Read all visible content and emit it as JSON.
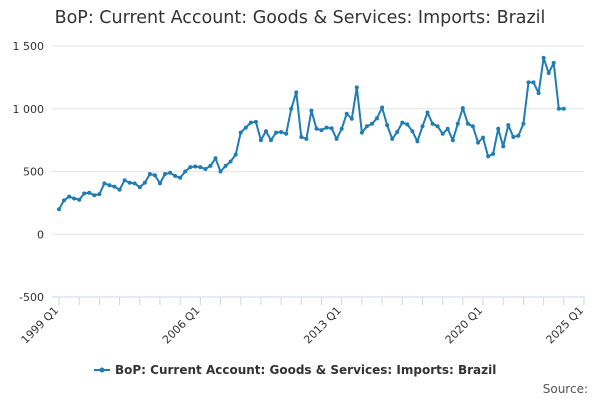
{
  "chart_data": {
    "type": "line",
    "title": "BoP: Current Account: Goods & Services: Imports: Brazil",
    "xlabel": "",
    "ylabel": "",
    "ylim": [
      -500,
      1500
    ],
    "y_ticks": [
      "1 500",
      "1 000",
      "500",
      "0",
      "-500"
    ],
    "x_ticks": [
      "1999 Q1",
      "2006 Q1",
      "2013 Q1",
      "2020 Q1",
      "2025 Q1"
    ],
    "grid": true,
    "legend_position": "bottom",
    "series": [
      {
        "name": "BoP: Current Account: Goods & Services: Imports: Brazil",
        "color": "#1f7cb4",
        "x": [
          "1999 Q1",
          "1999 Q2",
          "1999 Q3",
          "1999 Q4",
          "2000 Q1",
          "2000 Q2",
          "2000 Q3",
          "2000 Q4",
          "2001 Q1",
          "2001 Q2",
          "2001 Q3",
          "2001 Q4",
          "2002 Q1",
          "2002 Q2",
          "2002 Q3",
          "2002 Q4",
          "2003 Q1",
          "2003 Q2",
          "2003 Q3",
          "2003 Q4",
          "2004 Q1",
          "2004 Q2",
          "2004 Q3",
          "2004 Q4",
          "2005 Q1",
          "2005 Q2",
          "2005 Q3",
          "2005 Q4",
          "2006 Q1",
          "2006 Q2",
          "2006 Q3",
          "2006 Q4",
          "2007 Q1",
          "2007 Q2",
          "2007 Q3",
          "2007 Q4",
          "2008 Q1",
          "2008 Q2",
          "2008 Q3",
          "2008 Q4",
          "2009 Q1",
          "2009 Q2",
          "2009 Q3",
          "2009 Q4",
          "2010 Q1",
          "2010 Q2",
          "2010 Q3",
          "2010 Q4",
          "2011 Q1",
          "2011 Q2",
          "2011 Q3",
          "2011 Q4",
          "2012 Q1",
          "2012 Q2",
          "2012 Q3",
          "2012 Q4",
          "2013 Q1",
          "2013 Q2",
          "2013 Q3",
          "2013 Q4",
          "2014 Q1",
          "2014 Q2",
          "2014 Q3",
          "2014 Q4",
          "2015 Q1",
          "2015 Q2",
          "2015 Q3",
          "2015 Q4",
          "2016 Q1",
          "2016 Q2",
          "2016 Q3",
          "2016 Q4",
          "2017 Q1",
          "2017 Q2",
          "2017 Q3",
          "2017 Q4",
          "2018 Q1",
          "2018 Q2",
          "2018 Q3",
          "2018 Q4",
          "2019 Q1",
          "2019 Q2",
          "2019 Q3",
          "2019 Q4",
          "2020 Q1",
          "2020 Q2",
          "2020 Q3",
          "2020 Q4",
          "2021 Q1",
          "2021 Q2",
          "2021 Q3",
          "2021 Q4",
          "2022 Q1",
          "2022 Q2",
          "2022 Q3",
          "2022 Q4",
          "2023 Q1",
          "2023 Q2",
          "2023 Q3",
          "2023 Q4",
          "2024 Q1"
        ],
        "values": [
          200,
          270,
          300,
          285,
          275,
          325,
          330,
          310,
          320,
          405,
          390,
          380,
          355,
          430,
          410,
          405,
          375,
          410,
          480,
          470,
          405,
          480,
          490,
          465,
          450,
          500,
          535,
          540,
          535,
          520,
          545,
          605,
          500,
          545,
          580,
          635,
          810,
          850,
          890,
          895,
          750,
          820,
          750,
          810,
          815,
          800,
          1000,
          1130,
          775,
          760,
          985,
          840,
          830,
          850,
          845,
          760,
          840,
          960,
          920,
          1170,
          810,
          860,
          880,
          925,
          1010,
          870,
          760,
          815,
          890,
          875,
          820,
          740,
          860,
          970,
          880,
          860,
          800,
          840,
          750,
          880,
          1005,
          880,
          860,
          730,
          770,
          620,
          640,
          840,
          700,
          870,
          775,
          785,
          880,
          1210,
          1210,
          1125,
          1405,
          1285,
          1365,
          1000,
          1000
        ]
      }
    ]
  },
  "footer": {
    "credits": "Source:"
  }
}
